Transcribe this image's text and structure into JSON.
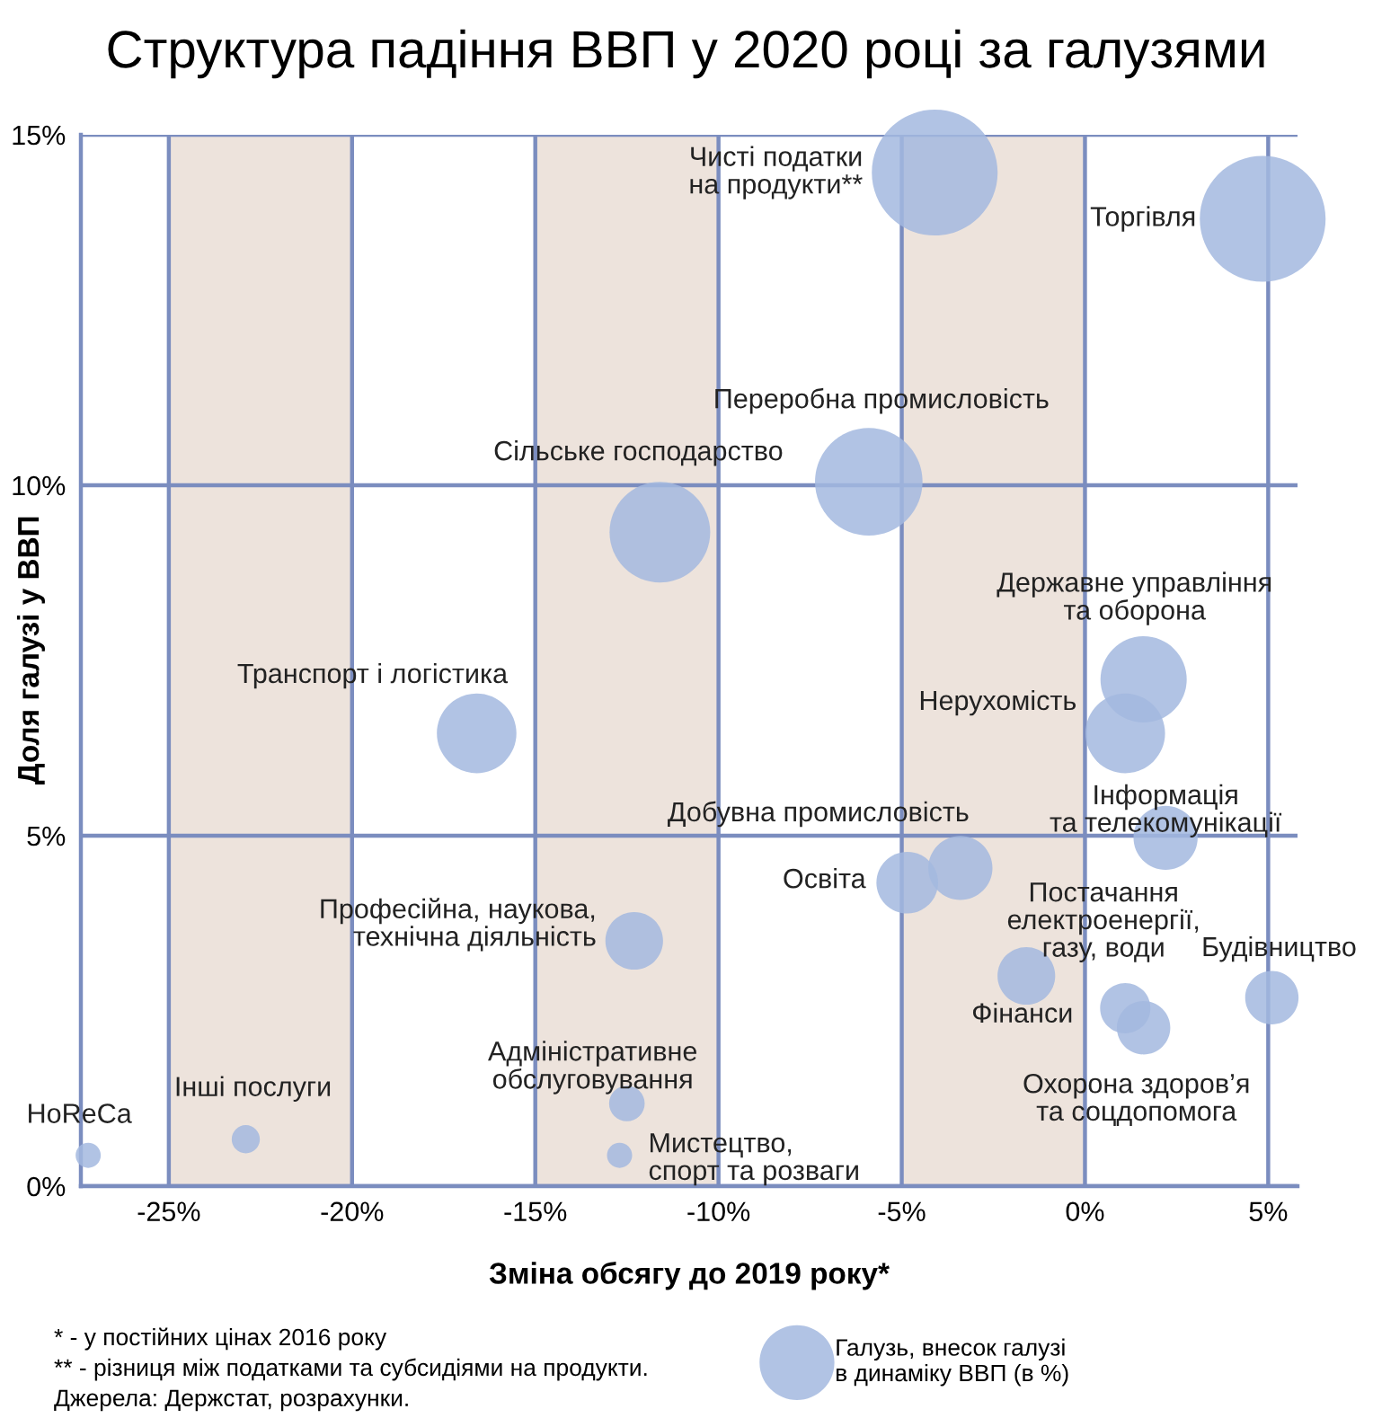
{
  "chart_data": {
    "type": "bubble",
    "title": "Структура падіння ВВП у 2020 році за галузями",
    "xlabel": "Зміна обсягу до 2019 року*",
    "ylabel": "Доля галузі у ВВП",
    "xlim": [
      -27.4,
      5.8
    ],
    "ylim": [
      0,
      15
    ],
    "xticks": [
      {
        "value": -25,
        "label": "-25%"
      },
      {
        "value": -20,
        "label": "-20%"
      },
      {
        "value": -15,
        "label": "-15%"
      },
      {
        "value": -10,
        "label": "-10%"
      },
      {
        "value": -5,
        "label": "-5%"
      },
      {
        "value": 0,
        "label": "0%"
      },
      {
        "value": 5,
        "label": "5%"
      }
    ],
    "yticks": [
      {
        "value": 0,
        "label": "0%"
      },
      {
        "value": 5,
        "label": "5%"
      },
      {
        "value": 10,
        "label": "10%"
      },
      {
        "value": 15,
        "label": "15%"
      }
    ],
    "grid": true,
    "legend": "bottom",
    "bands": [
      {
        "axis": "x",
        "from": -25,
        "to": -20,
        "color": "#ede3dc"
      },
      {
        "axis": "x",
        "from": -15,
        "to": -10,
        "color": "#ede3dc"
      },
      {
        "axis": "x",
        "from": -5,
        "to": 0,
        "color": "#ede3dc"
      }
    ],
    "series": [
      {
        "name": "Галузь, внесок галузі\nв динаміку ВВП (в %)",
        "color": "#a3b8df",
        "x": [
          -4.1,
          4.85,
          -5.9,
          -11.6,
          -16.6,
          1.6,
          1.1,
          2.2,
          -3.4,
          -4.85,
          -12.3,
          -1.6,
          5.1,
          1.1,
          1.6,
          -12.5,
          -22.9,
          -12.7,
          -27.2
        ],
        "values": [
          14.46,
          13.8,
          10.05,
          9.33,
          6.46,
          7.23,
          6.46,
          4.97,
          4.54,
          4.33,
          3.5,
          3.0,
          2.69,
          2.54,
          2.26,
          1.18,
          0.67,
          0.44,
          0.44
        ],
        "sizes": [
          1,
          1,
          0.73,
          0.64,
          0.4,
          0.47,
          0.4,
          0.26,
          0.26,
          0.24,
          0.21,
          0.21,
          0.18,
          0.16,
          0.18,
          0.08,
          0.05,
          0.04,
          0.04
        ]
      }
    ],
    "annotations": [
      {
        "text": "Чисті податки\nна продукти**",
        "x": -4.1,
        "y": 14.46
      },
      {
        "text": "Торгівля",
        "x": 4.85,
        "y": 13.8
      },
      {
        "text": "Переробна промисловість",
        "x": -5.9,
        "y": 10.05
      },
      {
        "text": "Сільське господарство",
        "x": -11.6,
        "y": 9.33
      },
      {
        "text": "Транспорт і логістика",
        "x": -16.6,
        "y": 6.46
      },
      {
        "text": "Державне управління\nта оборона",
        "x": 1.6,
        "y": 7.23
      },
      {
        "text": "Нерухомість",
        "x": 1.1,
        "y": 6.46
      },
      {
        "text": "Інформація\nта телекомунікації",
        "x": 2.2,
        "y": 4.97
      },
      {
        "text": "Добувна промисловість",
        "x": -3.4,
        "y": 4.54
      },
      {
        "text": "Освіта",
        "x": -4.85,
        "y": 4.33
      },
      {
        "text": "Професійна, наукова,\nтехнічна діяльність",
        "x": -12.3,
        "y": 3.5
      },
      {
        "text": "Постачання\nелектроенергії,\nгазу, води",
        "x": -1.6,
        "y": 3.0
      },
      {
        "text": "Будівництво",
        "x": 5.1,
        "y": 2.69
      },
      {
        "text": "Фінанси",
        "x": 1.1,
        "y": 2.54
      },
      {
        "text": "Охорона здоров’я\nта соцдопомога",
        "x": 1.6,
        "y": 2.26
      },
      {
        "text": "Адміністративне\nобслуговування",
        "x": -12.5,
        "y": 1.18
      },
      {
        "text": "Інші послуги",
        "x": -22.9,
        "y": 0.67
      },
      {
        "text": "Мистецтво,\nспорт та розваги",
        "x": -12.7,
        "y": 0.44
      },
      {
        "text": "HoReCa",
        "x": -27.2,
        "y": 0.44
      },
      "* - у постійних цінах 2016 року",
      "** - різниця між податками та субсидіями на продукти.",
      "Джерела: Держстат, розрахунки."
    ]
  }
}
